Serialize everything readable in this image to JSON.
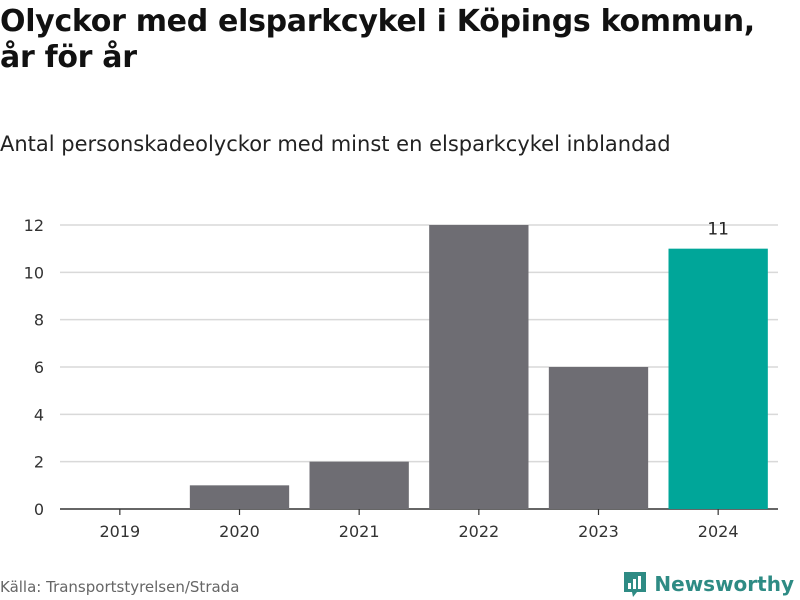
{
  "title": "Olyckor med elsparkcykel i Köpings kommun, år för år",
  "subtitle": "Antal personskadeolyckor med minst en elsparkcykel inblandad",
  "source": "Källa: Transportstyrelsen/Strada",
  "brand": "Newsworthy",
  "colors": {
    "bar": "#6e6d73",
    "highlight": "#00a699",
    "grid": "#d9d9d9",
    "axis": "#333333",
    "brand": "#2e8b84"
  },
  "chart_data": {
    "type": "bar",
    "categories": [
      "2019",
      "2020",
      "2021",
      "2022",
      "2023",
      "2024"
    ],
    "values": [
      0,
      1,
      2,
      12,
      6,
      11
    ],
    "highlight_index": 5,
    "data_labels": [
      {
        "index": 5,
        "text": "11"
      }
    ],
    "ylim": [
      0,
      12
    ],
    "yticks": [
      0,
      2,
      4,
      6,
      8,
      10,
      12
    ],
    "grid": true
  }
}
